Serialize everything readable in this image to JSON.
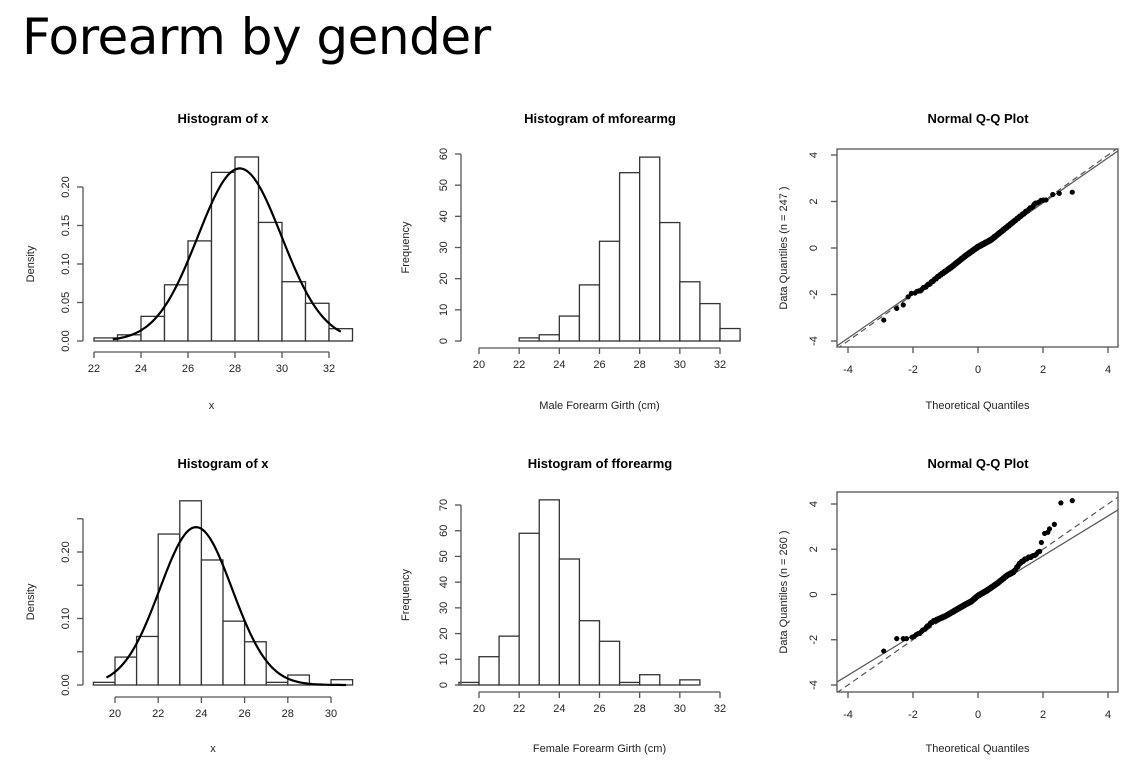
{
  "page": {
    "title": "Forearm by gender"
  },
  "chart_data": [
    {
      "id": "male-density",
      "type": "bar",
      "title": "Histogram of x",
      "xlabel": "x",
      "ylabel": "Density",
      "bin_edges": [
        22,
        23,
        24,
        25,
        26,
        27,
        28,
        29,
        30,
        31,
        32,
        33
      ],
      "values": [
        0.004,
        0.008,
        0.032,
        0.073,
        0.13,
        0.219,
        0.239,
        0.154,
        0.077,
        0.049,
        0.016
      ],
      "xlim": [
        22,
        33
      ],
      "ylim": [
        0,
        0.2
      ],
      "x_ticks": [
        22,
        24,
        26,
        28,
        30,
        32
      ],
      "y_ticks": [
        "0.00",
        "0.05",
        "0.10",
        "0.15",
        "0.20"
      ],
      "normal_curve": {
        "mean": 28.2,
        "sd": 1.78,
        "from": 22.8,
        "to": 32.5
      }
    },
    {
      "id": "male-frequency",
      "type": "bar",
      "title": "Histogram of mforearmg",
      "xlabel": "Male Forearm Girth (cm)",
      "ylabel": "Frequency",
      "bin_edges": [
        22,
        23,
        24,
        25,
        26,
        27,
        28,
        29,
        30,
        31,
        32,
        33
      ],
      "values": [
        1,
        2,
        8,
        18,
        32,
        54,
        59,
        38,
        19,
        12,
        4
      ],
      "xlim": [
        20,
        33
      ],
      "ylim": [
        0,
        60
      ],
      "x_ticks": [
        20,
        22,
        24,
        26,
        28,
        30,
        32
      ],
      "y_ticks": [
        "0",
        "10",
        "20",
        "30",
        "40",
        "50",
        "60"
      ]
    },
    {
      "id": "male-qq",
      "type": "scatter",
      "title": "Normal Q-Q Plot",
      "xlabel": "Theoretical Quantiles",
      "ylabel": "Data Quantiles (n = 247 )",
      "n": 247,
      "xlim": [
        -4,
        4
      ],
      "ylim": [
        -4,
        4
      ],
      "x_ticks": [
        "-4",
        "-2",
        "0",
        "2",
        "4"
      ],
      "y_ticks": [
        "-4",
        "-2",
        "0",
        "2",
        "4"
      ],
      "reference_lines": [
        {
          "style": "solid",
          "intercept": 0.0,
          "slope": 0.97
        },
        {
          "style": "dashed",
          "intercept": 0.0,
          "slope": 1.0
        }
      ],
      "tail_points": [
        [
          -2.9,
          -3.1
        ],
        [
          -2.5,
          -2.6
        ],
        [
          -2.3,
          -2.45
        ],
        [
          -2.15,
          -2.1
        ],
        [
          -2.05,
          -1.95
        ],
        [
          2.3,
          2.3
        ],
        [
          2.5,
          2.35
        ],
        [
          2.9,
          2.4
        ]
      ],
      "body_shape": [
        [
          -2.0,
          -1.95
        ],
        [
          -1.8,
          -1.85
        ],
        [
          -1.5,
          -1.55
        ],
        [
          -1.2,
          -1.2
        ],
        [
          -0.8,
          -0.8
        ],
        [
          -0.4,
          -0.35
        ],
        [
          0.0,
          0.05
        ],
        [
          0.4,
          0.35
        ],
        [
          0.8,
          0.8
        ],
        [
          1.2,
          1.25
        ],
        [
          1.6,
          1.7
        ],
        [
          1.8,
          1.95
        ],
        [
          2.1,
          2.1
        ]
      ]
    },
    {
      "id": "female-density",
      "type": "bar",
      "title": "Histogram of x",
      "xlabel": "x",
      "ylabel": "Density",
      "bin_edges": [
        19,
        20,
        21,
        22,
        23,
        24,
        25,
        26,
        27,
        28,
        29,
        30,
        31
      ],
      "values": [
        0.004,
        0.042,
        0.073,
        0.227,
        0.277,
        0.188,
        0.096,
        0.065,
        0.004,
        0.015,
        0.0,
        0.008
      ],
      "xlim": [
        19,
        31
      ],
      "ylim": [
        0,
        0.25
      ],
      "x_ticks": [
        20,
        22,
        24,
        26,
        28,
        30
      ],
      "y_ticks": [
        "0.00",
        "",
        "0.10",
        "",
        "0.20",
        ""
      ],
      "y_tick_values": [
        0,
        0.05,
        0.1,
        0.15,
        0.2,
        0.25
      ],
      "normal_curve": {
        "mean": 23.75,
        "sd": 1.68,
        "from": 19.6,
        "to": 30.7
      }
    },
    {
      "id": "female-frequency",
      "type": "bar",
      "title": "Histogram of fforearmg",
      "xlabel": "Female Forearm Girth (cm)",
      "ylabel": "Frequency",
      "bin_edges": [
        19,
        20,
        21,
        22,
        23,
        24,
        25,
        26,
        27,
        28,
        29,
        30,
        31
      ],
      "values": [
        1,
        11,
        19,
        59,
        72,
        49,
        25,
        17,
        1,
        4,
        0,
        2
      ],
      "xlim": [
        19,
        32
      ],
      "ylim": [
        0,
        70
      ],
      "x_ticks": [
        20,
        22,
        24,
        26,
        28,
        30,
        32
      ],
      "y_ticks": [
        "0",
        "10",
        "20",
        "30",
        "40",
        "50",
        "60",
        "70"
      ]
    },
    {
      "id": "female-qq",
      "type": "scatter",
      "title": "Normal Q-Q Plot",
      "xlabel": "Theoretical Quantiles",
      "ylabel": "Data Quantiles (n = 260 )",
      "n": 260,
      "xlim": [
        -4,
        4
      ],
      "ylim": [
        -4,
        4
      ],
      "x_ticks": [
        "-4",
        "-2",
        "0",
        "2",
        "4"
      ],
      "y_ticks": [
        "-4",
        "-2",
        "0",
        "2",
        "4"
      ],
      "reference_lines": [
        {
          "style": "solid",
          "intercept": -0.05,
          "slope": 0.88
        },
        {
          "style": "dashed",
          "intercept": 0.0,
          "slope": 1.0
        }
      ],
      "tail_points": [
        [
          -2.9,
          -2.5
        ],
        [
          -2.5,
          -1.95
        ],
        [
          -2.3,
          -1.95
        ],
        [
          -2.2,
          -1.95
        ],
        [
          1.95,
          2.3
        ],
        [
          2.05,
          2.7
        ],
        [
          2.15,
          2.75
        ],
        [
          2.2,
          2.9
        ],
        [
          2.35,
          3.1
        ],
        [
          2.55,
          4.05
        ],
        [
          2.9,
          4.15
        ]
      ],
      "body_shape": [
        [
          -2.1,
          -1.9
        ],
        [
          -1.9,
          -1.8
        ],
        [
          -1.7,
          -1.6
        ],
        [
          -1.4,
          -1.2
        ],
        [
          -1.0,
          -0.95
        ],
        [
          -0.7,
          -0.7
        ],
        [
          -0.4,
          -0.45
        ],
        [
          -0.2,
          -0.3
        ],
        [
          0.0,
          -0.05
        ],
        [
          0.3,
          0.2
        ],
        [
          0.6,
          0.5
        ],
        [
          0.9,
          0.85
        ],
        [
          1.1,
          1.0
        ],
        [
          1.3,
          1.4
        ],
        [
          1.5,
          1.6
        ],
        [
          1.7,
          1.7
        ],
        [
          1.9,
          1.9
        ]
      ]
    }
  ]
}
